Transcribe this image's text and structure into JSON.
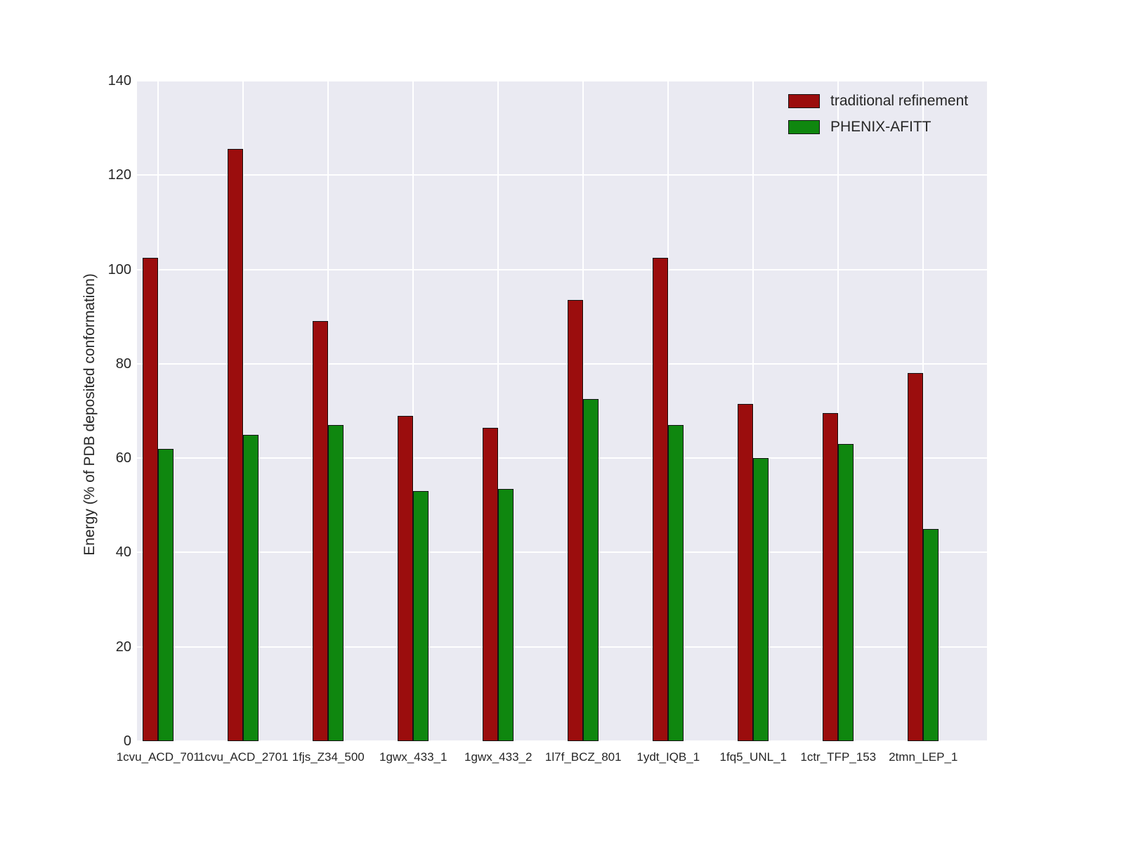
{
  "chart_data": {
    "type": "bar",
    "title": "",
    "xlabel": "",
    "ylabel": "Energy (% of PDB deposited conformation)",
    "ylim": [
      0,
      140
    ],
    "yticks": [
      0,
      20,
      40,
      60,
      80,
      100,
      120,
      140
    ],
    "grid": true,
    "legend_position": "upper right",
    "categories": [
      "1cvu_ACD_701",
      "1cvu_ACD_2701",
      "1fjs_Z34_500",
      "1gwx_433_1",
      "1gwx_433_2",
      "1l7f_BCZ_801",
      "1ydt_IQB_1",
      "1fq5_UNL_1",
      "1ctr_TFP_153",
      "2tmn_LEP_1"
    ],
    "series": [
      {
        "name": "traditional refinement",
        "color": "#9b0d0d",
        "values": [
          102.5,
          125.5,
          89,
          69,
          66.5,
          93.5,
          102.5,
          71.5,
          69.5,
          78
        ]
      },
      {
        "name": "PHENIX-AFITT",
        "color": "#0f870f",
        "values": [
          62,
          65,
          67,
          53,
          53.5,
          72.5,
          67,
          60,
          63,
          45
        ]
      }
    ]
  },
  "colors": {
    "plot_background": "#eaeaf2",
    "gridline": "#ffffff",
    "text": "#262626",
    "bar_edge": "#141414"
  }
}
